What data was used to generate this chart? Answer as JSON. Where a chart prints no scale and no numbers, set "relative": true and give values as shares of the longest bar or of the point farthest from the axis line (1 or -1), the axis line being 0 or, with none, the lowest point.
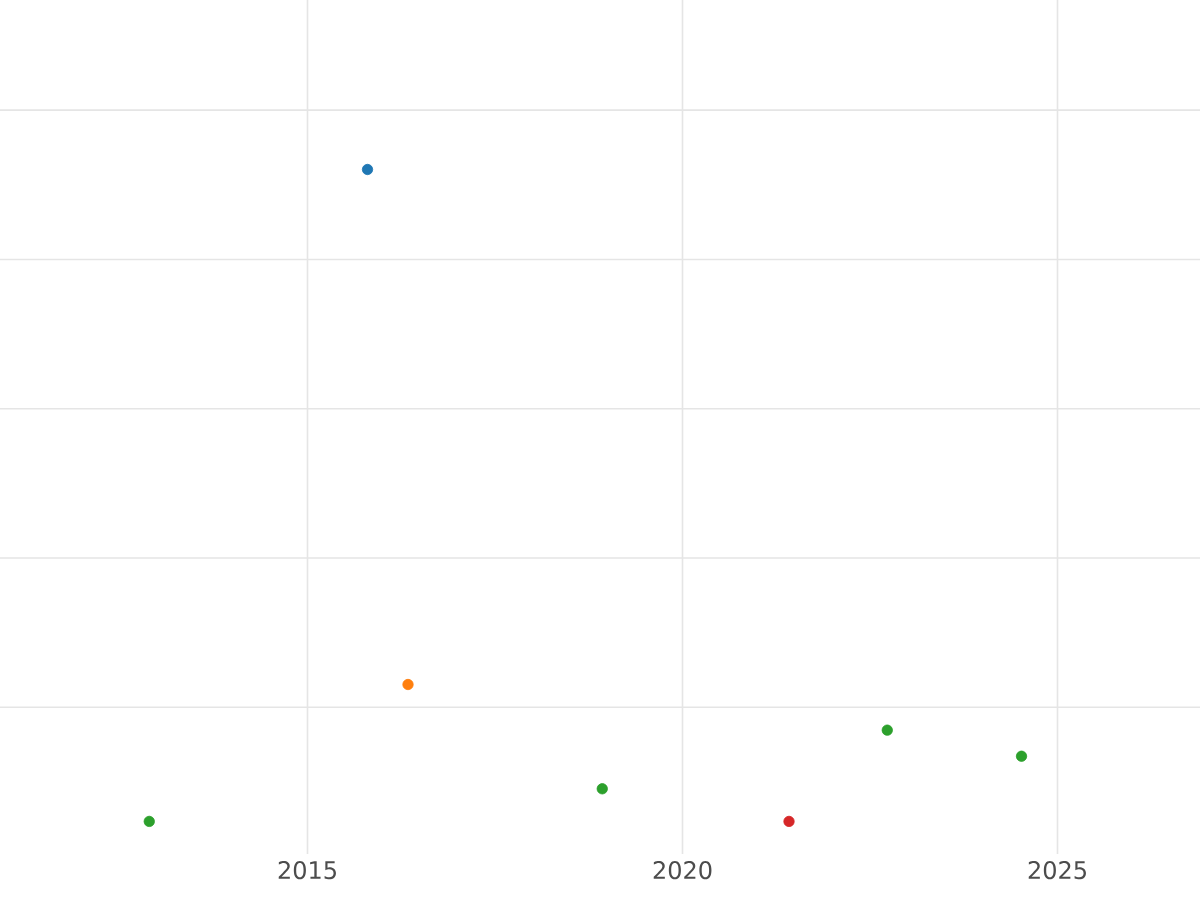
{
  "chart_data": {
    "type": "scatter",
    "relative": true,
    "grid": true,
    "xlim": [
      2010.9,
      2026.9
    ],
    "xticks": [
      2015,
      2020,
      2025
    ],
    "series": [
      {
        "color": "#1f77b4",
        "x": [
          2015.8
        ],
        "values": [
          1
        ]
      },
      {
        "color": "#ff7f0e",
        "x": [
          2016.34
        ],
        "values": [
          0.21
        ]
      },
      {
        "color": "#2ca02c",
        "x": [
          2012.89,
          2018.93,
          2022.73,
          2024.52
        ],
        "values": [
          0,
          0.05,
          0.14,
          0.1
        ]
      },
      {
        "color": "#d62728",
        "x": [
          2021.42
        ],
        "values": [
          0.0
        ]
      }
    ]
  }
}
